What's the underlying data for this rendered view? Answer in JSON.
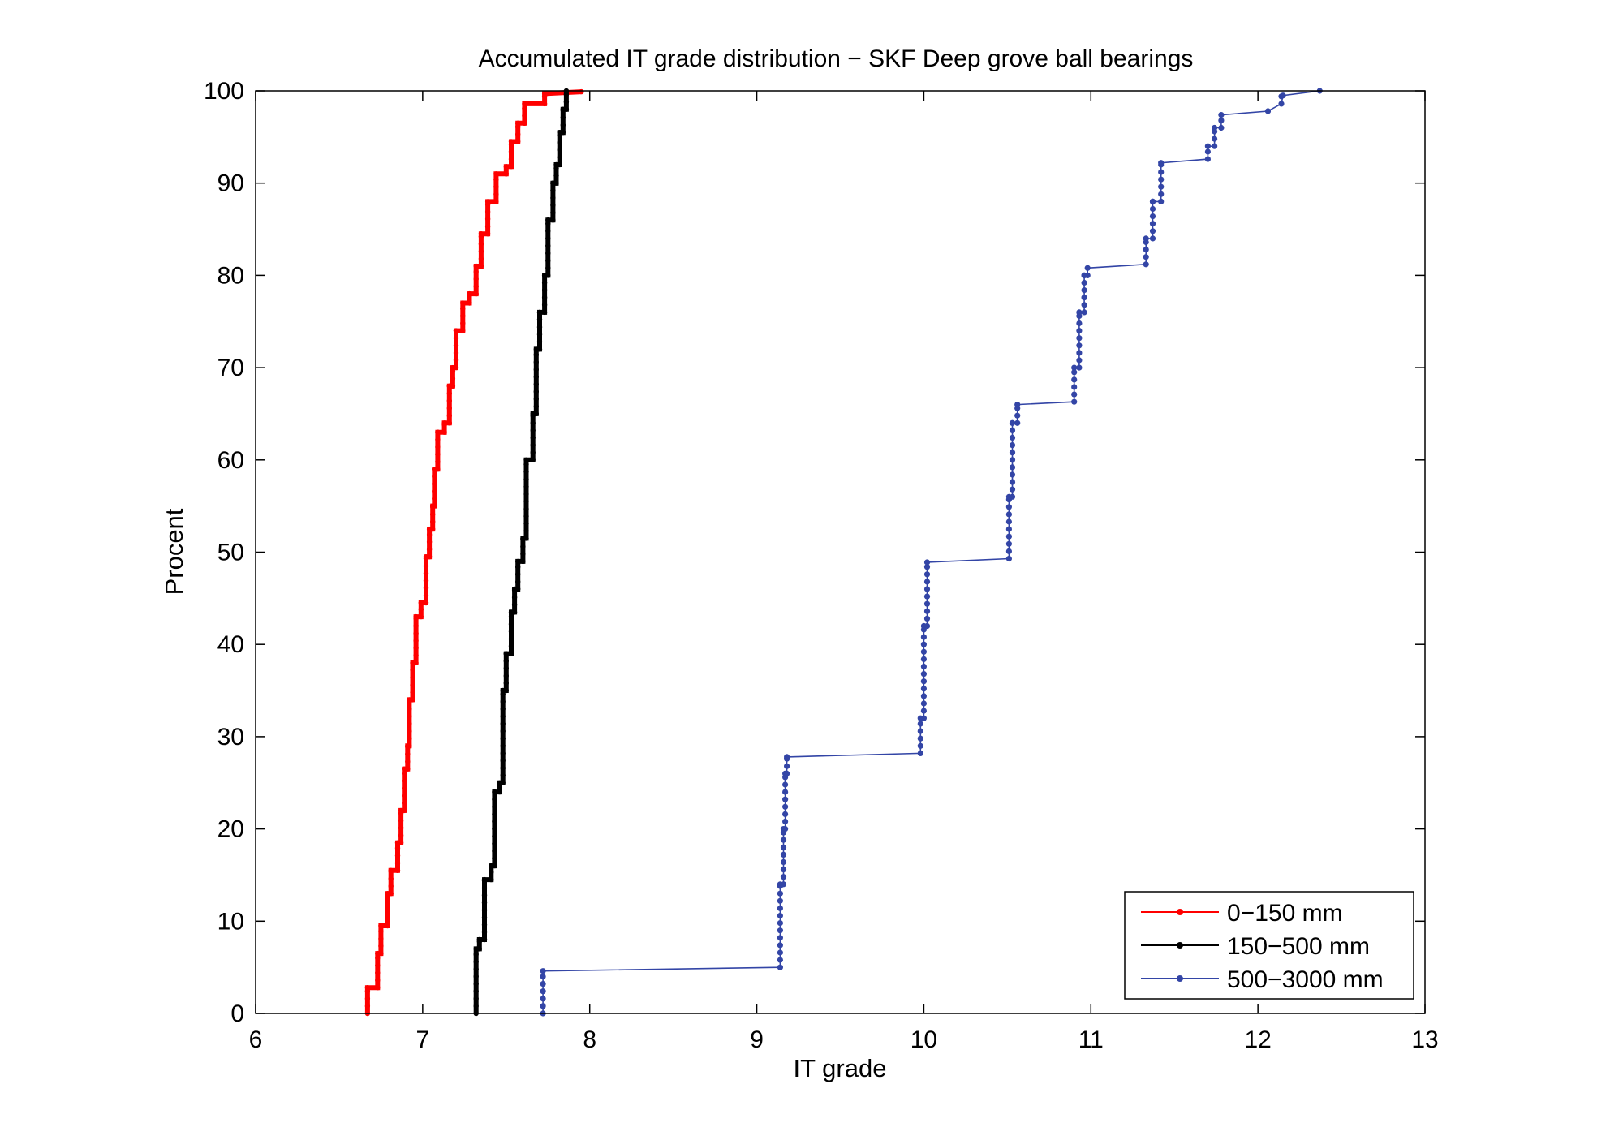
{
  "chart_data": {
    "type": "line",
    "title": "Accumulated IT grade distribution − SKF Deep grove ball bearings",
    "xlabel": "IT grade",
    "ylabel": "Procent",
    "xlim": [
      6,
      13
    ],
    "ylim": [
      0,
      100
    ],
    "xticks": [
      "6",
      "7",
      "8",
      "9",
      "10",
      "11",
      "12",
      "13"
    ],
    "yticks": [
      "0",
      "10",
      "20",
      "30",
      "40",
      "50",
      "60",
      "70",
      "80",
      "90",
      "100"
    ],
    "grid": false,
    "legend_position": "bottom-right",
    "series": [
      {
        "name": "0−150 mm",
        "color": "#ff0000",
        "style": "thick-step",
        "points": [
          [
            6.67,
            0
          ],
          [
            6.67,
            2.8
          ],
          [
            6.73,
            2.8
          ],
          [
            6.73,
            6.5
          ],
          [
            6.75,
            6.5
          ],
          [
            6.75,
            9.5
          ],
          [
            6.79,
            9.5
          ],
          [
            6.79,
            13
          ],
          [
            6.81,
            13
          ],
          [
            6.81,
            15.5
          ],
          [
            6.85,
            15.5
          ],
          [
            6.85,
            18.5
          ],
          [
            6.87,
            18.5
          ],
          [
            6.87,
            22
          ],
          [
            6.89,
            22
          ],
          [
            6.89,
            26.5
          ],
          [
            6.91,
            26.5
          ],
          [
            6.91,
            29
          ],
          [
            6.92,
            29
          ],
          [
            6.92,
            34
          ],
          [
            6.94,
            34
          ],
          [
            6.94,
            38
          ],
          [
            6.96,
            38
          ],
          [
            6.96,
            43
          ],
          [
            6.99,
            43
          ],
          [
            6.99,
            44.5
          ],
          [
            7.02,
            44.5
          ],
          [
            7.02,
            49.5
          ],
          [
            7.04,
            49.5
          ],
          [
            7.04,
            52.5
          ],
          [
            7.06,
            52.5
          ],
          [
            7.06,
            55
          ],
          [
            7.07,
            55
          ],
          [
            7.07,
            59
          ],
          [
            7.09,
            59
          ],
          [
            7.09,
            63
          ],
          [
            7.13,
            63
          ],
          [
            7.13,
            64
          ],
          [
            7.16,
            64
          ],
          [
            7.16,
            68
          ],
          [
            7.18,
            68
          ],
          [
            7.18,
            70
          ],
          [
            7.2,
            70
          ],
          [
            7.2,
            74
          ],
          [
            7.24,
            74
          ],
          [
            7.24,
            77
          ],
          [
            7.28,
            77
          ],
          [
            7.28,
            78
          ],
          [
            7.32,
            78
          ],
          [
            7.32,
            81
          ],
          [
            7.35,
            81
          ],
          [
            7.35,
            84.5
          ],
          [
            7.39,
            84.5
          ],
          [
            7.39,
            88
          ],
          [
            7.44,
            88
          ],
          [
            7.44,
            91
          ],
          [
            7.5,
            91
          ],
          [
            7.5,
            91.8
          ],
          [
            7.53,
            91.8
          ],
          [
            7.53,
            94.5
          ],
          [
            7.57,
            94.5
          ],
          [
            7.57,
            96.5
          ],
          [
            7.61,
            96.5
          ],
          [
            7.61,
            98.6
          ],
          [
            7.73,
            98.6
          ],
          [
            7.73,
            99.7
          ],
          [
            7.95,
            99.9
          ]
        ]
      },
      {
        "name": "150−500 mm",
        "color": "#000000",
        "style": "thick-step",
        "points": [
          [
            7.32,
            0
          ],
          [
            7.32,
            7
          ],
          [
            7.34,
            7
          ],
          [
            7.34,
            8
          ],
          [
            7.37,
            8
          ],
          [
            7.37,
            14.5
          ],
          [
            7.41,
            14.5
          ],
          [
            7.41,
            16
          ],
          [
            7.43,
            16
          ],
          [
            7.43,
            24
          ],
          [
            7.46,
            24
          ],
          [
            7.46,
            25
          ],
          [
            7.48,
            25
          ],
          [
            7.48,
            35
          ],
          [
            7.5,
            35
          ],
          [
            7.5,
            39
          ],
          [
            7.53,
            39
          ],
          [
            7.53,
            43.5
          ],
          [
            7.55,
            43.5
          ],
          [
            7.55,
            46
          ],
          [
            7.57,
            46
          ],
          [
            7.57,
            49
          ],
          [
            7.6,
            49
          ],
          [
            7.6,
            51.5
          ],
          [
            7.62,
            51.5
          ],
          [
            7.62,
            60
          ],
          [
            7.66,
            60
          ],
          [
            7.66,
            65
          ],
          [
            7.68,
            65
          ],
          [
            7.68,
            72
          ],
          [
            7.7,
            72
          ],
          [
            7.7,
            76
          ],
          [
            7.73,
            76
          ],
          [
            7.73,
            80
          ],
          [
            7.75,
            80
          ],
          [
            7.75,
            86
          ],
          [
            7.78,
            86
          ],
          [
            7.78,
            90
          ],
          [
            7.8,
            90
          ],
          [
            7.8,
            92
          ],
          [
            7.82,
            92
          ],
          [
            7.82,
            95.5
          ],
          [
            7.84,
            95.5
          ],
          [
            7.84,
            98
          ],
          [
            7.86,
            98
          ],
          [
            7.86,
            100
          ]
        ]
      },
      {
        "name": "500−3000 mm",
        "color": "#3345a6",
        "style": "thin-step",
        "points": [
          [
            7.72,
            0
          ],
          [
            7.72,
            4.6
          ],
          [
            9.14,
            5.0
          ],
          [
            9.14,
            14
          ],
          [
            9.16,
            14
          ],
          [
            9.16,
            20
          ],
          [
            9.17,
            20
          ],
          [
            9.17,
            26
          ],
          [
            9.18,
            26
          ],
          [
            9.18,
            27.8
          ],
          [
            9.98,
            28.2
          ],
          [
            9.98,
            32
          ],
          [
            10.0,
            32
          ],
          [
            10.0,
            42
          ],
          [
            10.02,
            42
          ],
          [
            10.02,
            48.9
          ],
          [
            10.51,
            49.3
          ],
          [
            10.51,
            56
          ],
          [
            10.53,
            56
          ],
          [
            10.53,
            64
          ],
          [
            10.56,
            64
          ],
          [
            10.56,
            66
          ],
          [
            10.9,
            66.3
          ],
          [
            10.9,
            70
          ],
          [
            10.93,
            70
          ],
          [
            10.93,
            76
          ],
          [
            10.96,
            76
          ],
          [
            10.96,
            80
          ],
          [
            10.98,
            80
          ],
          [
            10.98,
            80.8
          ],
          [
            11.33,
            81.2
          ],
          [
            11.33,
            84
          ],
          [
            11.37,
            84
          ],
          [
            11.37,
            88
          ],
          [
            11.42,
            88
          ],
          [
            11.42,
            92.2
          ],
          [
            11.7,
            92.6
          ],
          [
            11.7,
            94
          ],
          [
            11.74,
            94
          ],
          [
            11.74,
            96
          ],
          [
            11.78,
            96
          ],
          [
            11.78,
            97.4
          ],
          [
            12.06,
            97.8
          ],
          [
            12.14,
            98.6
          ],
          [
            12.15,
            99.5
          ],
          [
            12.37,
            100
          ]
        ]
      }
    ]
  }
}
